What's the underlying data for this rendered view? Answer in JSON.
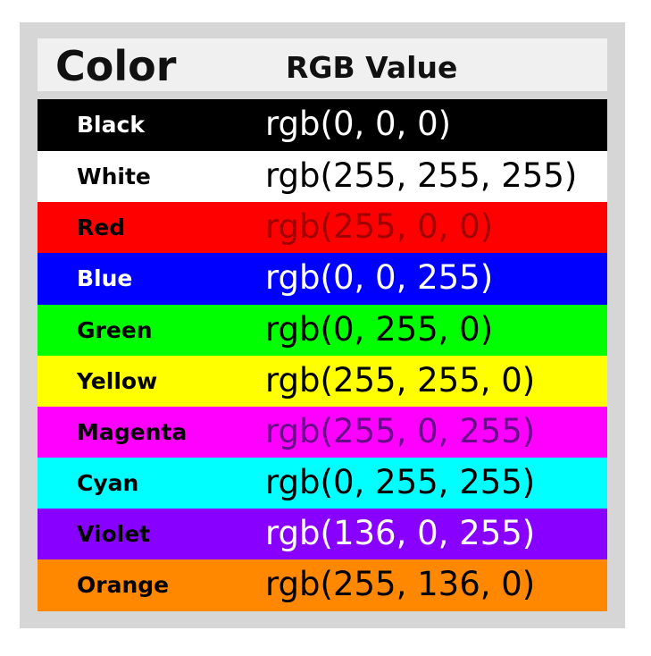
{
  "table": {
    "header": [
      "Color",
      "RGB Value"
    ],
    "rows": [
      [
        "Black",
        "rgb(0, 0, 0)"
      ],
      [
        "White",
        "rgb(255, 255, 255)"
      ],
      [
        "Red",
        "rgb(255, 0, 0)"
      ],
      [
        "Blue",
        "rgb(0, 0, 255)"
      ],
      [
        "Green",
        "rgb(0, 255, 0)"
      ],
      [
        "Yellow",
        "rgb(255, 255, 0)"
      ],
      [
        "Magenta",
        "rgb(255, 0, 255)"
      ],
      [
        "Cyan",
        "rgb(0, 255, 255)"
      ],
      [
        "Violet",
        "rgb(136, 0, 255)"
      ],
      [
        "Orange",
        "rgb(255, 136, 0)"
      ]
    ]
  }
}
